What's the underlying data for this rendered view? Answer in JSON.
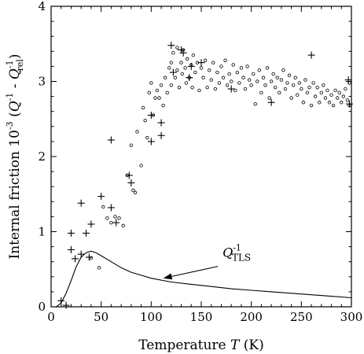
{
  "chart_data": {
    "type": "scatter",
    "xlim": [
      0,
      300
    ],
    "ylim": [
      0,
      4
    ],
    "x_ticks": [
      0,
      50,
      100,
      150,
      200,
      250,
      300
    ],
    "y_ticks": [
      0,
      1,
      2,
      3,
      4
    ],
    "xlabel": {
      "main": "Temperature ",
      "var": "T",
      "unit": " (K)"
    },
    "ylabel": {
      "main": "Internal friction  10",
      "exp": "-3",
      "open": " (",
      "q1": "Q",
      "q1exp": "-1",
      "minus": " - ",
      "q2": "Q",
      "q2exp": "-1",
      "q2sub": "rel",
      "close": ")"
    },
    "grid": false,
    "series": [
      {
        "marker": "circle",
        "points": [
          [
            40,
            0.65
          ],
          [
            48,
            0.52
          ],
          [
            52,
            1.33
          ],
          [
            56,
            1.18
          ],
          [
            60,
            1.12
          ],
          [
            64,
            1.2
          ],
          [
            68,
            1.18
          ],
          [
            72,
            1.08
          ],
          [
            76,
            1.75
          ],
          [
            80,
            2.15
          ],
          [
            82,
            1.55
          ],
          [
            84,
            1.52
          ],
          [
            86,
            2.33
          ],
          [
            90,
            1.88
          ],
          [
            92,
            2.65
          ],
          [
            94,
            2.48
          ],
          [
            96,
            2.25
          ],
          [
            98,
            2.85
          ],
          [
            100,
            2.98
          ],
          [
            102,
            2.55
          ],
          [
            104,
            2.78
          ],
          [
            106,
            2.88
          ],
          [
            108,
            2.78
          ],
          [
            110,
            2.95
          ],
          [
            112,
            2.68
          ],
          [
            114,
            3.05
          ],
          [
            116,
            2.85
          ],
          [
            118,
            3.18
          ],
          [
            120,
            3.25
          ],
          [
            120,
            2.95
          ],
          [
            122,
            3.38
          ],
          [
            124,
            3.05
          ],
          [
            126,
            3.45
          ],
          [
            126,
            3.15
          ],
          [
            128,
            2.92
          ],
          [
            130,
            3.25
          ],
          [
            131,
            3.1
          ],
          [
            132,
            3.42
          ],
          [
            134,
            3.18
          ],
          [
            135,
            2.98
          ],
          [
            136,
            3.3
          ],
          [
            138,
            3.05
          ],
          [
            140,
            3.22
          ],
          [
            141,
            2.92
          ],
          [
            142,
            3.35
          ],
          [
            144,
            3.12
          ],
          [
            146,
            3.25
          ],
          [
            148,
            2.88
          ],
          [
            150,
            3.18
          ],
          [
            152,
            3.05
          ],
          [
            154,
            3.28
          ],
          [
            156,
            2.92
          ],
          [
            158,
            3.15
          ],
          [
            160,
            3.02
          ],
          [
            162,
            3.25
          ],
          [
            164,
            2.9
          ],
          [
            166,
            3.12
          ],
          [
            168,
            2.98
          ],
          [
            170,
            3.2
          ],
          [
            172,
            3.05
          ],
          [
            174,
            3.28
          ],
          [
            176,
            2.95
          ],
          [
            178,
            3.1
          ],
          [
            180,
            3.0
          ],
          [
            182,
            3.22
          ],
          [
            184,
            2.88
          ],
          [
            186,
            3.12
          ],
          [
            188,
            2.98
          ],
          [
            190,
            3.18
          ],
          [
            192,
            3.05
          ],
          [
            194,
            2.9
          ],
          [
            196,
            3.2
          ],
          [
            198,
            3.02
          ],
          [
            200,
            2.95
          ],
          [
            202,
            3.1
          ],
          [
            204,
            2.7
          ],
          [
            206,
            3.0
          ],
          [
            208,
            3.15
          ],
          [
            210,
            2.85
          ],
          [
            212,
            3.05
          ],
          [
            214,
            2.95
          ],
          [
            216,
            3.18
          ],
          [
            218,
            2.78
          ],
          [
            220,
            3.0
          ],
          [
            222,
            3.1
          ],
          [
            224,
            2.92
          ],
          [
            226,
            3.05
          ],
          [
            228,
            2.85
          ],
          [
            230,
            3.02
          ],
          [
            232,
            3.15
          ],
          [
            234,
            2.9
          ],
          [
            236,
            2.98
          ],
          [
            238,
            3.08
          ],
          [
            240,
            2.78
          ],
          [
            242,
            2.95
          ],
          [
            244,
            3.05
          ],
          [
            246,
            2.82
          ],
          [
            248,
            2.98
          ],
          [
            250,
            2.9
          ],
          [
            252,
            2.72
          ],
          [
            254,
            3.02
          ],
          [
            256,
            2.85
          ],
          [
            258,
            2.92
          ],
          [
            260,
            2.68
          ],
          [
            262,
            2.98
          ],
          [
            264,
            2.8
          ],
          [
            266,
            2.92
          ],
          [
            268,
            2.72
          ],
          [
            270,
            2.85
          ],
          [
            272,
            2.95
          ],
          [
            274,
            2.78
          ],
          [
            276,
            2.88
          ],
          [
            278,
            2.72
          ],
          [
            280,
            2.82
          ],
          [
            282,
            2.68
          ],
          [
            284,
            2.88
          ],
          [
            286,
            2.78
          ],
          [
            288,
            2.85
          ],
          [
            290,
            2.72
          ],
          [
            292,
            2.8
          ],
          [
            294,
            2.9
          ],
          [
            296,
            2.75
          ],
          [
            298,
            2.68
          ],
          [
            298,
            2.98
          ]
        ]
      },
      {
        "marker": "cross",
        "points": [
          [
            10,
            0.08
          ],
          [
            15,
            0.02
          ],
          [
            20,
            0.98
          ],
          [
            20,
            0.76
          ],
          [
            24,
            0.64
          ],
          [
            30,
            1.38
          ],
          [
            30,
            0.7
          ],
          [
            35,
            0.98
          ],
          [
            38,
            0.66
          ],
          [
            40,
            1.1
          ],
          [
            50,
            1.47
          ],
          [
            60,
            2.22
          ],
          [
            60,
            1.32
          ],
          [
            65,
            1.12
          ],
          [
            78,
            1.75
          ],
          [
            80,
            1.65
          ],
          [
            100,
            2.2
          ],
          [
            100,
            2.55
          ],
          [
            110,
            2.45
          ],
          [
            110,
            2.28
          ],
          [
            120,
            3.48
          ],
          [
            122,
            3.12
          ],
          [
            130,
            3.42
          ],
          [
            132,
            3.38
          ],
          [
            138,
            3.05
          ],
          [
            140,
            3.2
          ],
          [
            150,
            3.25
          ],
          [
            180,
            2.9
          ],
          [
            220,
            2.72
          ],
          [
            260,
            3.35
          ],
          [
            297,
            3.02
          ],
          [
            298,
            2.7
          ]
        ]
      },
      {
        "marker": "line",
        "points": [
          [
            5,
            0
          ],
          [
            10,
            0.05
          ],
          [
            15,
            0.18
          ],
          [
            20,
            0.35
          ],
          [
            25,
            0.53
          ],
          [
            30,
            0.66
          ],
          [
            35,
            0.72
          ],
          [
            40,
            0.74
          ],
          [
            45,
            0.72
          ],
          [
            50,
            0.68
          ],
          [
            60,
            0.6
          ],
          [
            70,
            0.52
          ],
          [
            80,
            0.46
          ],
          [
            90,
            0.42
          ],
          [
            100,
            0.38
          ],
          [
            120,
            0.33
          ],
          [
            140,
            0.3
          ],
          [
            160,
            0.27
          ],
          [
            180,
            0.24
          ],
          [
            200,
            0.22
          ],
          [
            220,
            0.2
          ],
          [
            240,
            0.18
          ],
          [
            260,
            0.16
          ],
          [
            280,
            0.14
          ],
          [
            300,
            0.12
          ]
        ]
      }
    ],
    "annotation": {
      "q": "Q",
      "sup": "-1",
      "sub": "TLS",
      "text_at": [
        165,
        0.58
      ],
      "arrow_to": [
        112,
        0.38
      ]
    }
  }
}
